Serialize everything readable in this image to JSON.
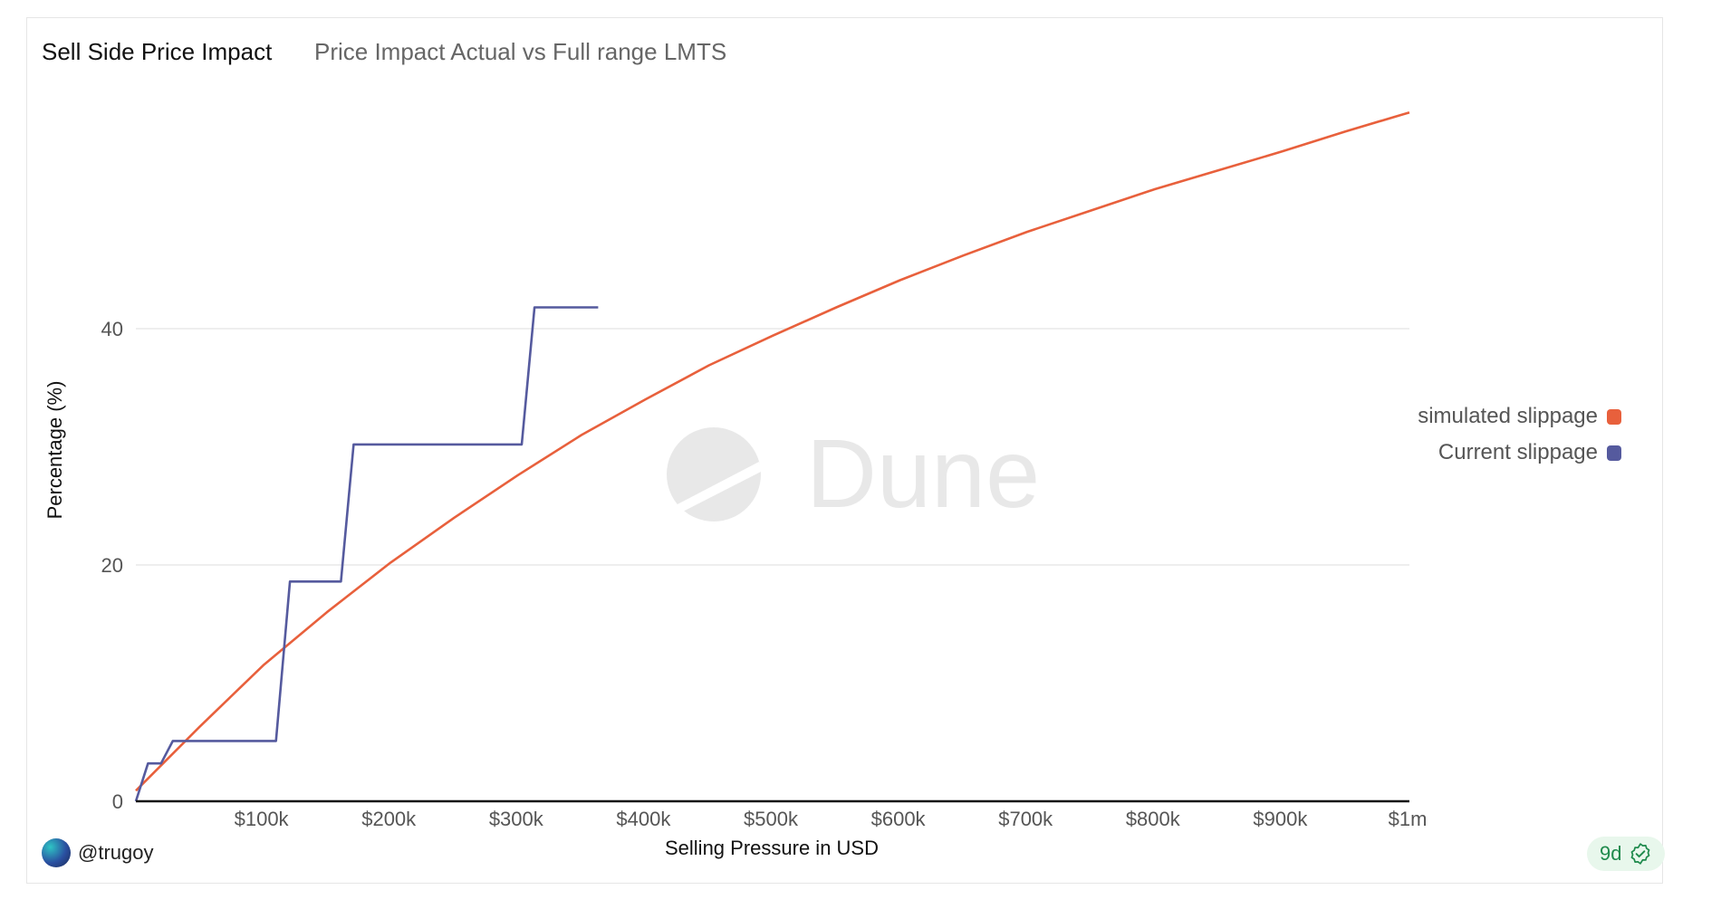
{
  "header": {
    "title": "Sell Side Price Impact",
    "subtitle": "Price Impact Actual vs Full range LMTS"
  },
  "footer": {
    "author": "@trugoy",
    "age_badge": "9d",
    "badge_icon": "verified-check-icon"
  },
  "watermark": "Dune",
  "colors": {
    "simulated": "#e8603c",
    "current": "#555a9e",
    "grid": "#e8e8e8",
    "badge_green": "#1e8a4c"
  },
  "chart_data": {
    "type": "line",
    "title": "Sell Side Price Impact",
    "subtitle": "Price Impact Actual vs Full range LMTS",
    "xlabel": "Selling Pressure in USD",
    "ylabel": "Percentage (%)",
    "xlim": [
      0,
      1000000
    ],
    "ylim": [
      0,
      60
    ],
    "grid": true,
    "legend_placement": "right",
    "x_ticks": [
      {
        "v": 100000,
        "label": "$100k"
      },
      {
        "v": 200000,
        "label": "$200k"
      },
      {
        "v": 300000,
        "label": "$300k"
      },
      {
        "v": 400000,
        "label": "$400k"
      },
      {
        "v": 500000,
        "label": "$500k"
      },
      {
        "v": 600000,
        "label": "$600k"
      },
      {
        "v": 700000,
        "label": "$700k"
      },
      {
        "v": 800000,
        "label": "$800k"
      },
      {
        "v": 900000,
        "label": "$900k"
      },
      {
        "v": 1000000,
        "label": "$1m"
      }
    ],
    "y_ticks": [
      {
        "v": 0,
        "label": "0"
      },
      {
        "v": 20,
        "label": "20"
      },
      {
        "v": 40,
        "label": "40"
      }
    ],
    "series": [
      {
        "name": "simulated slippage",
        "color": "#e8603c",
        "points": [
          [
            0,
            0.9
          ],
          [
            50000,
            6.3
          ],
          [
            100000,
            11.5
          ],
          [
            150000,
            16.0
          ],
          [
            200000,
            20.2
          ],
          [
            250000,
            24.0
          ],
          [
            300000,
            27.6
          ],
          [
            350000,
            31.0
          ],
          [
            400000,
            34.0
          ],
          [
            450000,
            36.9
          ],
          [
            500000,
            39.4
          ],
          [
            550000,
            41.8
          ],
          [
            600000,
            44.1
          ],
          [
            650000,
            46.2
          ],
          [
            700000,
            48.2
          ],
          [
            750000,
            50.0
          ],
          [
            800000,
            51.8
          ],
          [
            850000,
            53.4
          ],
          [
            900000,
            55.0
          ],
          [
            950000,
            56.7
          ],
          [
            1000000,
            58.3
          ]
        ]
      },
      {
        "name": "Current slippage",
        "color": "#555a9e",
        "points": [
          [
            0,
            0
          ],
          [
            9500,
            3.2
          ],
          [
            19800,
            3.2
          ],
          [
            29000,
            5.1
          ],
          [
            110000,
            5.1
          ],
          [
            121000,
            18.6
          ],
          [
            161000,
            18.6
          ],
          [
            171000,
            30.2
          ],
          [
            303000,
            30.2
          ],
          [
            313000,
            41.8
          ],
          [
            363000,
            41.8
          ]
        ]
      }
    ]
  }
}
